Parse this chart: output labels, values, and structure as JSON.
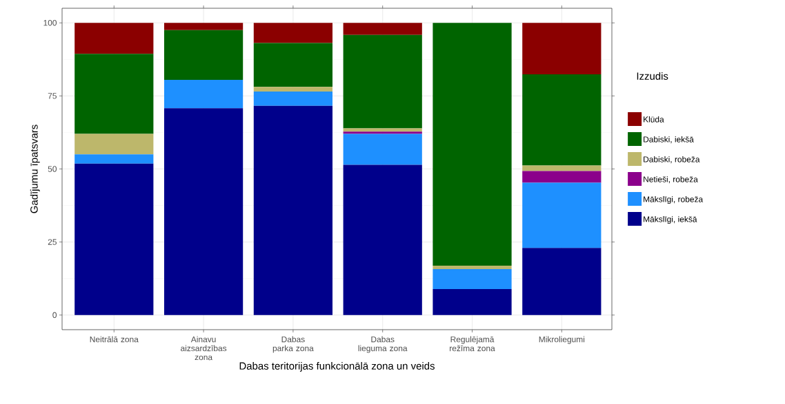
{
  "chart_data": {
    "type": "bar",
    "stacked": true,
    "xlabel": "Dabas teritorijas funkcionālā zona un veids",
    "ylabel": "Gadījumu īpatsvars",
    "legend_title": "Izzudis",
    "categories": [
      "Neitrālā zona",
      "Ainavu aizsardzības zona",
      "Dabas parka zona",
      "Dabas lieguma zona",
      "Regulējamā režīma zona",
      "Mikroliegumi"
    ],
    "series": [
      {
        "name": "Mākslīgi, iekšā",
        "color": "#00008b",
        "values": [
          51.8,
          70.8,
          71.6,
          51.4,
          8.9,
          23.0
        ]
      },
      {
        "name": "Mākslīgi, robeža",
        "color": "#1e90ff",
        "values": [
          3.2,
          9.7,
          4.9,
          10.6,
          6.8,
          22.3
        ]
      },
      {
        "name": "Netieši, robeža",
        "color": "#8b008b",
        "values": [
          0,
          0,
          0,
          0.8,
          0,
          4.0
        ]
      },
      {
        "name": "Dabiski, robeža",
        "color": "#bdb76b",
        "values": [
          7.0,
          0,
          1.6,
          1.1,
          1.2,
          1.9
        ]
      },
      {
        "name": "Dabiski, iekšā",
        "color": "#006400",
        "values": [
          27.4,
          17.0,
          15.0,
          32.0,
          83.1,
          31.2
        ]
      },
      {
        "name": "Klūda",
        "color": "#8b0000",
        "values": [
          10.6,
          2.5,
          6.9,
          4.1,
          0,
          17.6
        ]
      }
    ],
    "ylim": [
      -5,
      105
    ],
    "yticks": [
      0,
      25,
      50,
      75,
      100
    ],
    "grid": true,
    "legend": "right"
  }
}
